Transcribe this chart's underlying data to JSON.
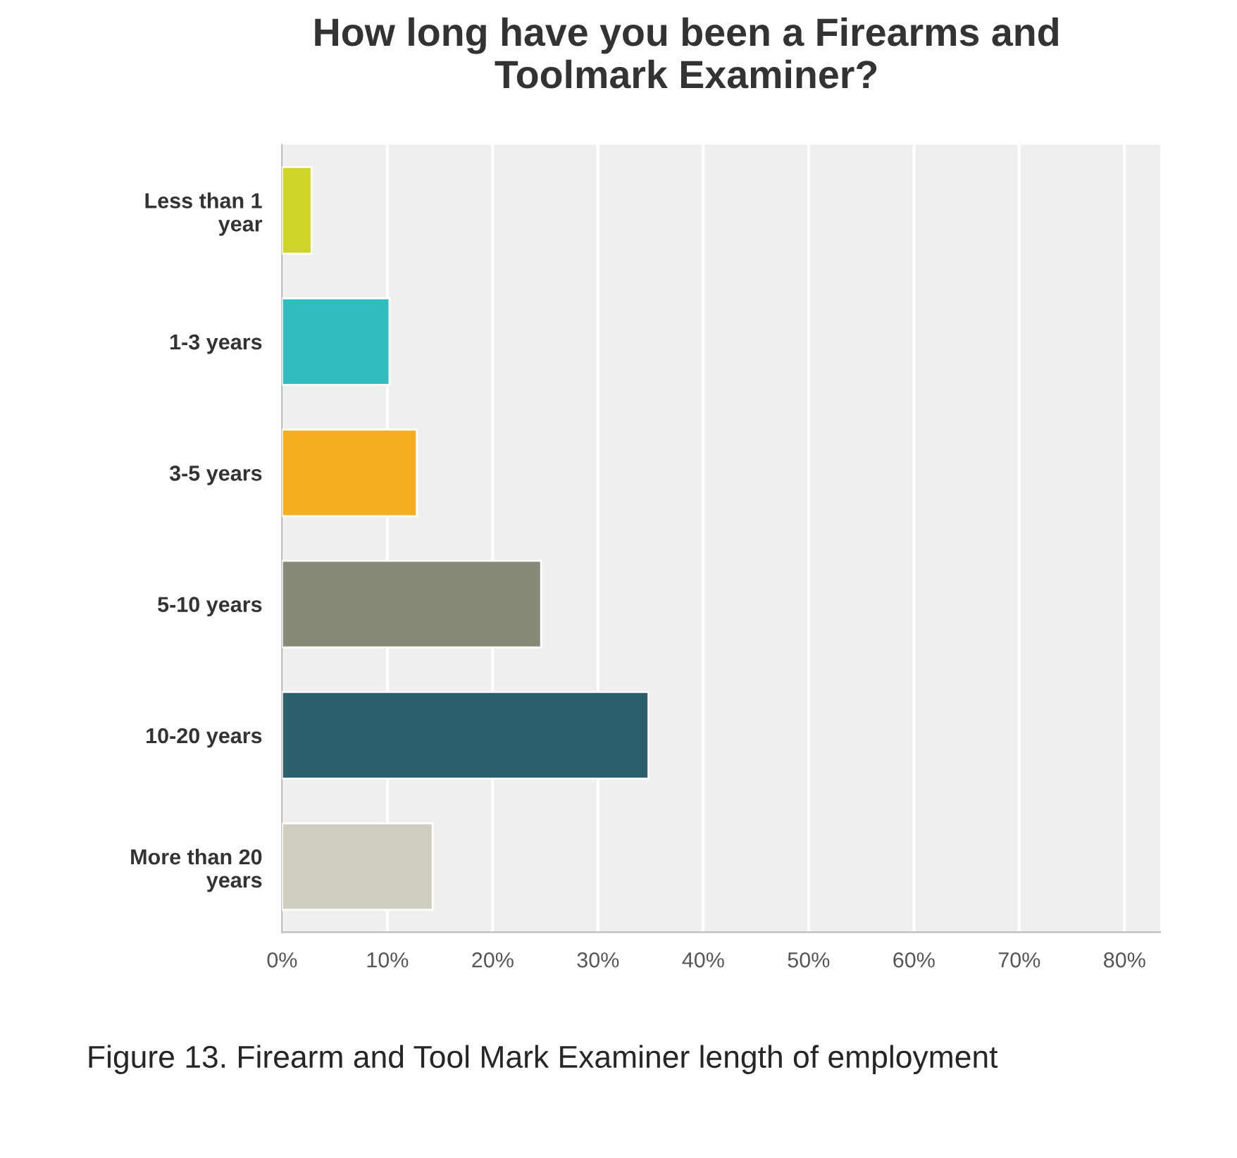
{
  "chart_data": {
    "type": "bar",
    "orientation": "horizontal",
    "title": "How long have you been a Firearms and\nToolmark Examiner?",
    "categories": [
      "Less than 1\nyear",
      "1-3 years",
      "3-5 years",
      "5-10 years",
      "10-20 years",
      "More than 20\nyears"
    ],
    "values": [
      2.8,
      10.2,
      12.8,
      24.6,
      34.8,
      14.3
    ],
    "colors": [
      "#d0d426",
      "#32bcbf",
      "#f6ae1f",
      "#888978",
      "#2e5f6c",
      "#cfcdbf"
    ],
    "xlim": [
      0,
      83.4
    ],
    "xticks": [
      {
        "value": 0,
        "label": "0%"
      },
      {
        "value": 10,
        "label": "10%"
      },
      {
        "value": 20,
        "label": "20%"
      },
      {
        "value": 30,
        "label": "30%"
      },
      {
        "value": 40,
        "label": "40%"
      },
      {
        "value": 50,
        "label": "50%"
      },
      {
        "value": 60,
        "label": "60%"
      },
      {
        "value": 70,
        "label": "70%"
      },
      {
        "value": 80,
        "label": "80%"
      }
    ],
    "grid": "x",
    "annotations": [
      "Figure 13. Firearm and Tool Mark Examiner length of employment"
    ]
  }
}
